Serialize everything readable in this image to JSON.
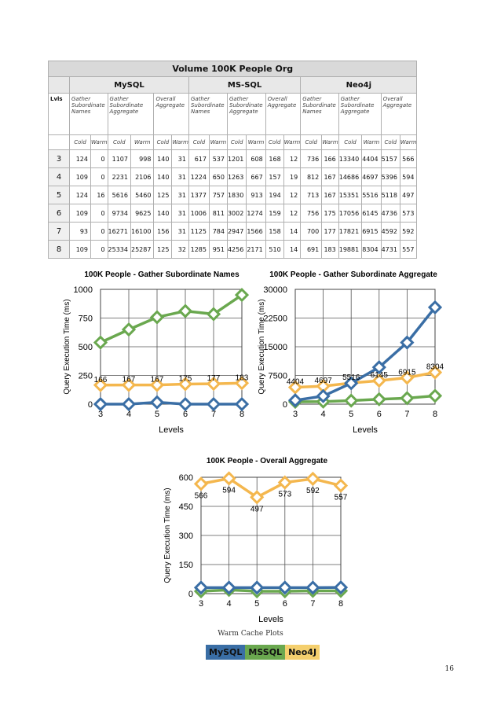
{
  "table": {
    "title": "Volume 100K People Org",
    "databases": [
      "MySQL",
      "MS-SQL",
      "Neo4j"
    ],
    "lvls_label": "Lvls",
    "metrics": [
      "Gather Subordinate Names",
      "Gather Subordinate Aggregate",
      "Overall Aggregate"
    ],
    "cache_labels": [
      "Cold",
      "Warm"
    ],
    "rows": [
      {
        "lvl": "3",
        "values": [
          "124",
          "0",
          "1107",
          "998",
          "140",
          "31",
          "617",
          "537",
          "1201",
          "608",
          "168",
          "12",
          "736",
          "166",
          "13340",
          "4404",
          "5157",
          "566"
        ]
      },
      {
        "lvl": "4",
        "values": [
          "109",
          "0",
          "2231",
          "2106",
          "140",
          "31",
          "1224",
          "650",
          "1263",
          "667",
          "157",
          "19",
          "812",
          "167",
          "14686",
          "4697",
          "5396",
          "594"
        ]
      },
      {
        "lvl": "5",
        "values": [
          "124",
          "16",
          "5616",
          "5460",
          "125",
          "31",
          "1377",
          "757",
          "1830",
          "913",
          "194",
          "12",
          "713",
          "167",
          "15351",
          "5516",
          "5118",
          "497"
        ]
      },
      {
        "lvl": "6",
        "values": [
          "109",
          "0",
          "9734",
          "9625",
          "140",
          "31",
          "1006",
          "811",
          "3002",
          "1274",
          "159",
          "12",
          "756",
          "175",
          "17056",
          "6145",
          "4736",
          "573"
        ]
      },
      {
        "lvl": "7",
        "values": [
          "93",
          "0",
          "16271",
          "16100",
          "156",
          "31",
          "1125",
          "784",
          "2947",
          "1566",
          "158",
          "14",
          "700",
          "177",
          "17821",
          "6915",
          "4592",
          "592"
        ]
      },
      {
        "lvl": "8",
        "values": [
          "109",
          "0",
          "25334",
          "25287",
          "125",
          "32",
          "1285",
          "951",
          "4256",
          "2171",
          "510",
          "14",
          "691",
          "183",
          "19881",
          "8304",
          "4731",
          "557"
        ]
      }
    ]
  },
  "chart_data": [
    {
      "type": "line",
      "title": "100K People - Gather Subordinate Names",
      "xlabel": "Levels",
      "ylabel": "Query Execution Time (ms)",
      "x": [
        3,
        4,
        5,
        6,
        7,
        8
      ],
      "ylim": [
        0,
        1000
      ],
      "yticks": [
        "0",
        "250",
        "500",
        "750",
        "1000"
      ],
      "series": [
        {
          "color": "#3a6ea5",
          "values": [
            0,
            0,
            16,
            0,
            0,
            0
          ]
        },
        {
          "color": "#6aa84f",
          "values": [
            537,
            650,
            757,
            811,
            784,
            951
          ]
        },
        {
          "color": "#f4b74e",
          "values": [
            166,
            167,
            167,
            175,
            177,
            183
          ]
        }
      ],
      "data_labels": {
        "series": 2,
        "values": [
          "166",
          "167",
          "167",
          "175",
          "177",
          "183"
        ]
      }
    },
    {
      "type": "line",
      "title": "100K People - Gather Subordinate Aggregate",
      "xlabel": "Levels",
      "ylabel": "Query Execution Time (ms)",
      "x": [
        3,
        4,
        5,
        6,
        7,
        8
      ],
      "ylim": [
        0,
        30000
      ],
      "yticks": [
        "0",
        "7500",
        "15000",
        "22500",
        "30000"
      ],
      "series": [
        {
          "color": "#3a6ea5",
          "values": [
            998,
            2106,
            5460,
            9625,
            16100,
            25287
          ]
        },
        {
          "color": "#6aa84f",
          "values": [
            608,
            667,
            913,
            1274,
            1566,
            2171
          ]
        },
        {
          "color": "#f4b74e",
          "values": [
            4404,
            4697,
            5516,
            6145,
            6915,
            8304
          ]
        }
      ],
      "data_labels": {
        "series": 2,
        "values": [
          "4404",
          "4697",
          "5516",
          "6145",
          "6915",
          "8304"
        ]
      }
    },
    {
      "type": "line",
      "title": "100K People - Overall Aggregate",
      "xlabel": "Levels",
      "ylabel": "Query Execution Time (ms)",
      "x": [
        3,
        4,
        5,
        6,
        7,
        8
      ],
      "ylim": [
        0,
        600
      ],
      "yticks": [
        "0",
        "150",
        "300",
        "450",
        "600"
      ],
      "series": [
        {
          "color": "#3a6ea5",
          "values": [
            31,
            31,
            31,
            31,
            31,
            32
          ]
        },
        {
          "color": "#6aa84f",
          "values": [
            12,
            19,
            12,
            12,
            14,
            14
          ]
        },
        {
          "color": "#f4b74e",
          "values": [
            566,
            594,
            497,
            573,
            592,
            557
          ]
        }
      ],
      "data_labels": {
        "series": 2,
        "values": [
          "566",
          "594",
          "497",
          "573",
          "592",
          "557"
        ]
      }
    }
  ],
  "caption": "Warm Cache Plots",
  "legend": [
    {
      "label": "MySQL",
      "color": "#3a6ea5"
    },
    {
      "label": "MSSQL",
      "color": "#6aa84f"
    },
    {
      "label": "Neo4J",
      "color": "#f4cf6e"
    }
  ],
  "page_number": "16"
}
